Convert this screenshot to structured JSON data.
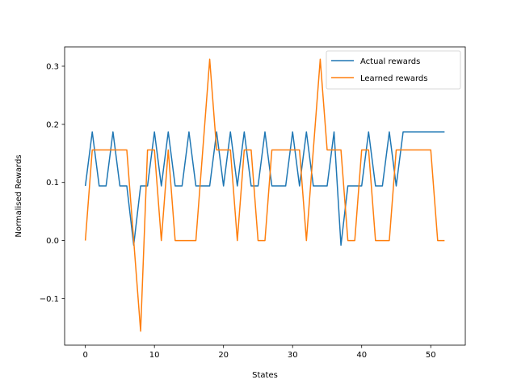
{
  "chart_data": {
    "type": "line",
    "xlabel": "States",
    "ylabel": "Normalised Rewards",
    "xlim": [
      -3,
      55
    ],
    "ylim": [
      -0.18,
      0.3333
    ],
    "xticks": [
      0,
      10,
      20,
      30,
      40,
      50
    ],
    "yticks": [
      -0.1,
      0.0,
      0.1,
      0.2,
      0.3
    ],
    "xtick_labels": [
      "0",
      "10",
      "20",
      "30",
      "40",
      "50"
    ],
    "ytick_labels": [
      "−0.1",
      "0.0",
      "0.1",
      "0.2",
      "0.3"
    ],
    "grid": false,
    "legend_position": "top-right",
    "series": [
      {
        "name": "Actual rewards",
        "color": "#1f77b4",
        "values": [
          0.094,
          0.187,
          0.094,
          0.094,
          0.187,
          0.094,
          0.094,
          -0.008,
          0.094,
          0.094,
          0.187,
          0.094,
          0.187,
          0.094,
          0.094,
          0.187,
          0.094,
          0.094,
          0.094,
          0.187,
          0.094,
          0.187,
          0.094,
          0.187,
          0.094,
          0.094,
          0.187,
          0.094,
          0.094,
          0.094,
          0.187,
          0.094,
          0.187,
          0.094,
          0.094,
          0.094,
          0.187,
          -0.008,
          0.094,
          0.094,
          0.094,
          0.187,
          0.094,
          0.094,
          0.187,
          0.094,
          0.187,
          0.187,
          0.187,
          0.187,
          0.187,
          0.187,
          0.187
        ]
      },
      {
        "name": "Learned rewards",
        "color": "#ff7f0e",
        "values": [
          0.0,
          0.156,
          0.156,
          0.156,
          0.156,
          0.156,
          0.156,
          0.0,
          -0.156,
          0.156,
          0.156,
          0.0,
          0.156,
          0.0,
          0.0,
          0.0,
          0.0,
          0.156,
          0.312,
          0.156,
          0.156,
          0.156,
          0.0,
          0.156,
          0.156,
          0.0,
          0.0,
          0.156,
          0.156,
          0.156,
          0.156,
          0.156,
          0.0,
          0.156,
          0.312,
          0.156,
          0.156,
          0.156,
          0.0,
          0.0,
          0.156,
          0.156,
          0.0,
          0.0,
          0.0,
          0.156,
          0.156,
          0.156,
          0.156,
          0.156,
          0.156,
          0.0,
          0.0
        ]
      }
    ]
  }
}
